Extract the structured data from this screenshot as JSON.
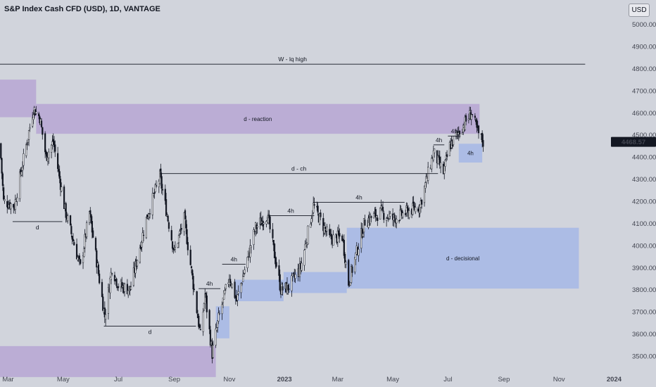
{
  "header": {
    "title": "S&P Index Cash CFD (USD), 1D, VANTAGE",
    "currency_label": "USD"
  },
  "colors": {
    "background": "#d1d4dc",
    "candle_body": "#131722",
    "purple_zone": "#b8a9d4",
    "blue_zone": "#a7b9e6",
    "price_label_bg": "#131722",
    "price_label_fg": "#ffffff"
  },
  "chart_data": {
    "type": "candlestick",
    "instrument": "S&P Index Cash CFD (USD)",
    "timeframe": "1D",
    "broker": "VANTAGE",
    "y_axis": {
      "unit": "USD",
      "ylim": [
        3430,
        5110
      ],
      "ticks": [
        "5000.00",
        "4900.00",
        "4800.00",
        "4700.00",
        "4600.00",
        "4500.00",
        "4400.00",
        "4300.00",
        "4200.00",
        "4100.00",
        "4000.00",
        "3900.00",
        "3800.00",
        "3700.00",
        "3600.00",
        "3500.00"
      ]
    },
    "x_axis": {
      "range": [
        "2022-02-20",
        "2024-01-10"
      ],
      "ticks": [
        {
          "label": "Mar",
          "date": "2022-03-01",
          "bold": false
        },
        {
          "label": "May",
          "date": "2022-05-01",
          "bold": false
        },
        {
          "label": "Jul",
          "date": "2022-07-01",
          "bold": false
        },
        {
          "label": "Sep",
          "date": "2022-09-01",
          "bold": false
        },
        {
          "label": "Nov",
          "date": "2022-11-01",
          "bold": false
        },
        {
          "label": "2023",
          "date": "2023-01-01",
          "bold": true
        },
        {
          "label": "Mar",
          "date": "2023-03-01",
          "bold": false
        },
        {
          "label": "May",
          "date": "2023-05-01",
          "bold": false
        },
        {
          "label": "Jul",
          "date": "2023-07-01",
          "bold": false
        },
        {
          "label": "Sep",
          "date": "2023-09-01",
          "bold": false
        },
        {
          "label": "Nov",
          "date": "2023-11-01",
          "bold": false
        },
        {
          "label": "2024",
          "date": "2024-01-01",
          "bold": true
        }
      ]
    },
    "last_price": {
      "value": 4468.57,
      "label": "4468.57"
    },
    "price_path": [
      [
        "2022-02-20",
        4460
      ],
      [
        "2022-02-24",
        4200
      ],
      [
        "2022-03-08",
        4180
      ],
      [
        "2022-03-29",
        4620
      ],
      [
        "2022-04-05",
        4580
      ],
      [
        "2022-04-12",
        4400
      ],
      [
        "2022-04-20",
        4470
      ],
      [
        "2022-05-03",
        4160
      ],
      [
        "2022-05-20",
        3900
      ],
      [
        "2022-05-30",
        4150
      ],
      [
        "2022-06-16",
        3680
      ],
      [
        "2022-06-24",
        3900
      ],
      [
        "2022-07-01",
        3820
      ],
      [
        "2022-07-14",
        3800
      ],
      [
        "2022-08-01",
        4120
      ],
      [
        "2022-08-16",
        4310
      ],
      [
        "2022-09-01",
        3970
      ],
      [
        "2022-09-12",
        4120
      ],
      [
        "2022-09-30",
        3590
      ],
      [
        "2022-10-05",
        3780
      ],
      [
        "2022-10-13",
        3510
      ],
      [
        "2022-10-20",
        3670
      ],
      [
        "2022-11-01",
        3860
      ],
      [
        "2022-11-09",
        3750
      ],
      [
        "2022-11-30",
        4080
      ],
      [
        "2022-12-13",
        4140
      ],
      [
        "2022-12-28",
        3800
      ],
      [
        "2023-01-05",
        3810
      ],
      [
        "2023-01-19",
        3900
      ],
      [
        "2023-02-02",
        4180
      ],
      [
        "2023-02-20",
        4030
      ],
      [
        "2023-03-06",
        4040
      ],
      [
        "2023-03-13",
        3830
      ],
      [
        "2023-03-31",
        4110
      ],
      [
        "2023-04-18",
        4150
      ],
      [
        "2023-05-01",
        4120
      ],
      [
        "2023-05-31",
        4180
      ],
      [
        "2023-06-15",
        4420
      ],
      [
        "2023-06-26",
        4330
      ],
      [
        "2023-07-03",
        4450
      ],
      [
        "2023-07-27",
        4600
      ],
      [
        "2023-08-03",
        4510
      ],
      [
        "2023-08-09",
        4468
      ]
    ],
    "horizontal_lines": [
      {
        "label": "W - lq high",
        "price": 4820,
        "start": "2022-02-20",
        "end": "2023-11-30"
      },
      {
        "label": "d",
        "price": 4108,
        "start": "2022-03-06",
        "end": "2022-04-30"
      },
      {
        "label": "d",
        "price": 3635,
        "start": "2022-06-15",
        "end": "2022-09-25"
      },
      {
        "label": "d - ch",
        "price": 4325,
        "start": "2022-08-16",
        "end": "2023-06-20"
      },
      {
        "label": "4h",
        "price": 3805,
        "start": "2022-09-28",
        "end": "2022-10-22"
      },
      {
        "label": "4h",
        "price": 3915,
        "start": "2022-10-24",
        "end": "2022-11-19"
      },
      {
        "label": "4h",
        "price": 4135,
        "start": "2022-12-13",
        "end": "2023-02-03"
      },
      {
        "label": "4h",
        "price": 4195,
        "start": "2023-02-02",
        "end": "2023-05-14"
      },
      {
        "label": "4h",
        "price": 4455,
        "start": "2023-06-15",
        "end": "2023-06-27"
      },
      {
        "label": "4h",
        "price": 4495,
        "start": "2023-07-01",
        "end": "2023-07-15"
      }
    ],
    "zones": [
      {
        "label": "",
        "color": "purple",
        "price_high": 4750,
        "price_low": 4580,
        "start": "2022-02-20",
        "end": "2022-04-01"
      },
      {
        "label": "d - reaction",
        "color": "purple",
        "price_high": 4640,
        "price_low": 4505,
        "start": "2022-04-01",
        "end": "2023-08-05"
      },
      {
        "label": "",
        "color": "purple",
        "price_high": 3545,
        "price_low": 3405,
        "start": "2022-02-20",
        "end": "2022-10-17"
      },
      {
        "label": "",
        "color": "blue",
        "price_high": 3725,
        "price_low": 3580,
        "start": "2022-10-17",
        "end": "2022-11-01"
      },
      {
        "label": "",
        "color": "blue",
        "price_high": 3845,
        "price_low": 3748,
        "start": "2022-11-07",
        "end": "2022-12-31"
      },
      {
        "label": "",
        "color": "blue",
        "price_high": 3880,
        "price_low": 3785,
        "start": "2022-12-31",
        "end": "2023-03-11"
      },
      {
        "label": "d - decisional",
        "color": "blue",
        "price_high": 4080,
        "price_low": 3805,
        "start": "2023-03-11",
        "end": "2023-11-23"
      },
      {
        "label": "4h",
        "color": "blue",
        "price_high": 4460,
        "price_low": 4375,
        "start": "2023-07-13",
        "end": "2023-08-08"
      }
    ]
  }
}
